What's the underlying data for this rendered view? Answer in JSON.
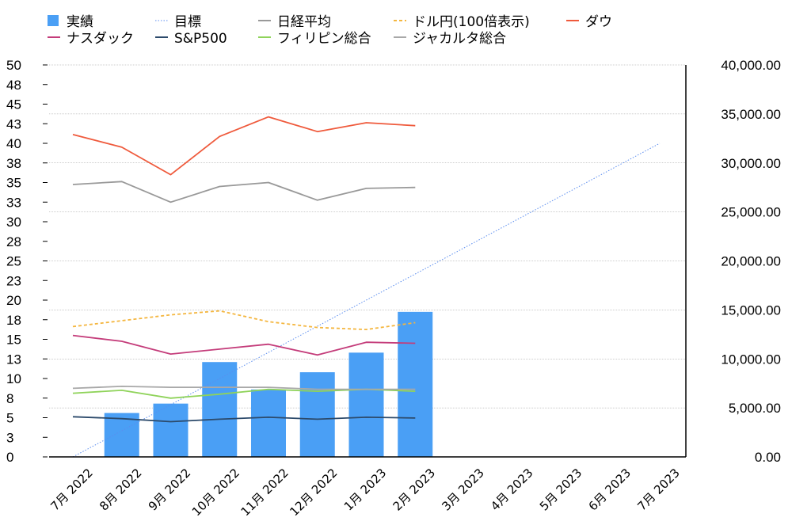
{
  "chart_data": {
    "type": "bar",
    "categories": [
      "7月 2022",
      "8月 2022",
      "9月 2022",
      "10月 2022",
      "11月 2022",
      "12月 2022",
      "1月 2023",
      "2月 2023",
      "3月 2023",
      "4月 2023",
      "5月 2023",
      "6月 2023",
      "7月 2023"
    ],
    "left_axis": {
      "ylim": [
        0,
        50
      ],
      "tick_labels": [
        "0",
        "3",
        "5",
        "8",
        "10",
        "13",
        "15",
        "18",
        "20",
        "23",
        "25",
        "28",
        "30",
        "33",
        "35",
        "38",
        "40",
        "43",
        "45",
        "48",
        "50"
      ]
    },
    "right_axis": {
      "ylim": [
        0,
        40000
      ],
      "tick_labels": [
        "0.00",
        "5,000.00",
        "10,000.00",
        "15,000.00",
        "20,000.00",
        "25,000.00",
        "30,000.00",
        "35,000.00",
        "40,000.00"
      ]
    },
    "series": [
      {
        "name": "実績",
        "kind": "bar",
        "axis": "left",
        "color": "#4a9ff5",
        "values": [
          null,
          5.6,
          6.8,
          12.1,
          8.6,
          10.8,
          13.3,
          18.5,
          null,
          null,
          null,
          null,
          null
        ]
      },
      {
        "name": "目標",
        "kind": "line",
        "axis": "left",
        "color": "#5b8def",
        "style": "dotted",
        "values": [
          0,
          3.33,
          6.67,
          10,
          13.33,
          16.67,
          20,
          23.33,
          26.67,
          30,
          33.33,
          36.67,
          40
        ]
      },
      {
        "name": "日経平均",
        "kind": "line",
        "axis": "right",
        "color": "#999999",
        "values": [
          27800,
          28100,
          26000,
          27600,
          28000,
          26200,
          27400,
          27500,
          null,
          null,
          null,
          null,
          null
        ]
      },
      {
        "name": "ドル円(100倍表示)",
        "kind": "line",
        "axis": "right",
        "color": "#f4b63f",
        "style": "dashed",
        "values": [
          13300,
          13900,
          14500,
          14900,
          13800,
          13200,
          13000,
          13700,
          null,
          null,
          null,
          null,
          null
        ]
      },
      {
        "name": "ダウ",
        "kind": "line",
        "axis": "right",
        "color": "#ef5a3c",
        "values": [
          32900,
          31600,
          28800,
          32700,
          34700,
          33200,
          34100,
          33800,
          null,
          null,
          null,
          null,
          null
        ]
      },
      {
        "name": "ナスダック",
        "kind": "line",
        "axis": "right",
        "color": "#c43c7a",
        "values": [
          12400,
          11800,
          10500,
          11000,
          11500,
          10400,
          11700,
          11600,
          null,
          null,
          null,
          null,
          null
        ]
      },
      {
        "name": "S&P500",
        "kind": "line",
        "axis": "right",
        "color": "#2c4a6b",
        "values": [
          4100,
          3900,
          3600,
          3850,
          4050,
          3850,
          4050,
          3970,
          null,
          null,
          null,
          null,
          null
        ]
      },
      {
        "name": "フィリピン総合",
        "kind": "line",
        "axis": "right",
        "color": "#8fd35a",
        "values": [
          6500,
          6800,
          6000,
          6400,
          6900,
          6700,
          6900,
          6700,
          null,
          null,
          null,
          null,
          null
        ]
      },
      {
        "name": "ジャカルタ総合",
        "kind": "line",
        "axis": "right",
        "color": "#a8a8a8",
        "values": [
          7000,
          7200,
          7100,
          7100,
          7100,
          6900,
          6900,
          6900,
          null,
          null,
          null,
          null,
          null
        ]
      }
    ],
    "legend_placement": "top",
    "grid": true
  }
}
